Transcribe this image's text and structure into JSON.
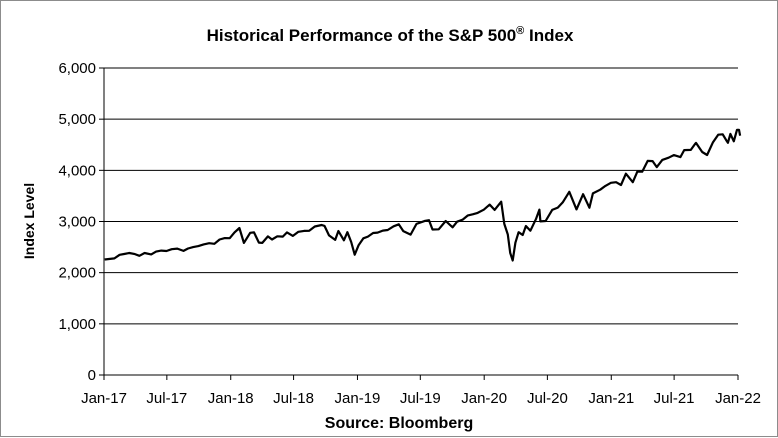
{
  "chart_data": {
    "type": "line",
    "title": "Historical Performance of the S&P 500",
    "title_superscript": "®",
    "title_suffix": " Index",
    "xlabel": "Source: Bloomberg",
    "ylabel": "Index Level",
    "ylim": [
      0,
      6000
    ],
    "yticks": [
      0,
      1000,
      2000,
      3000,
      4000,
      5000,
      6000
    ],
    "ytick_labels": [
      "0",
      "1,000",
      "2,000",
      "3,000",
      "4,000",
      "5,000",
      "6,000"
    ],
    "xlim": [
      "2017-01-01",
      "2022-01-01"
    ],
    "xticks": [
      "2017-01-01",
      "2017-07-01",
      "2018-01-01",
      "2018-07-01",
      "2019-01-01",
      "2019-07-01",
      "2020-01-01",
      "2020-07-01",
      "2021-01-01",
      "2021-07-01",
      "2022-01-01"
    ],
    "xtick_labels": [
      "Jan-17",
      "Jul-17",
      "Jan-18",
      "Jul-18",
      "Jan-19",
      "Jul-19",
      "Jan-20",
      "Jul-20",
      "Jan-21",
      "Jul-21",
      "Jan-22"
    ],
    "grid": true,
    "line_color": "#000000",
    "series": [
      {
        "name": "S&P 500",
        "points": [
          [
            "2017-01-03",
            2258
          ],
          [
            "2017-01-31",
            2279
          ],
          [
            "2017-02-15",
            2349
          ],
          [
            "2017-02-28",
            2364
          ],
          [
            "2017-03-15",
            2385
          ],
          [
            "2017-03-31",
            2363
          ],
          [
            "2017-04-13",
            2329
          ],
          [
            "2017-04-28",
            2384
          ],
          [
            "2017-05-17",
            2357
          ],
          [
            "2017-05-31",
            2412
          ],
          [
            "2017-06-15",
            2432
          ],
          [
            "2017-06-30",
            2423
          ],
          [
            "2017-07-15",
            2459
          ],
          [
            "2017-07-31",
            2470
          ],
          [
            "2017-08-18",
            2425
          ],
          [
            "2017-08-31",
            2472
          ],
          [
            "2017-09-15",
            2500
          ],
          [
            "2017-09-30",
            2519
          ],
          [
            "2017-10-15",
            2553
          ],
          [
            "2017-10-31",
            2575
          ],
          [
            "2017-11-15",
            2565
          ],
          [
            "2017-11-30",
            2648
          ],
          [
            "2017-12-15",
            2675
          ],
          [
            "2017-12-29",
            2674
          ],
          [
            "2018-01-12",
            2786
          ],
          [
            "2018-01-26",
            2873
          ],
          [
            "2018-02-08",
            2581
          ],
          [
            "2018-02-26",
            2780
          ],
          [
            "2018-03-09",
            2786
          ],
          [
            "2018-03-23",
            2588
          ],
          [
            "2018-04-02",
            2582
          ],
          [
            "2018-04-18",
            2708
          ],
          [
            "2018-04-30",
            2648
          ],
          [
            "2018-05-15",
            2711
          ],
          [
            "2018-05-31",
            2705
          ],
          [
            "2018-06-12",
            2787
          ],
          [
            "2018-06-29",
            2718
          ],
          [
            "2018-07-15",
            2798
          ],
          [
            "2018-07-31",
            2816
          ],
          [
            "2018-08-15",
            2819
          ],
          [
            "2018-08-31",
            2902
          ],
          [
            "2018-09-20",
            2931
          ],
          [
            "2018-09-28",
            2914
          ],
          [
            "2018-10-11",
            2728
          ],
          [
            "2018-10-29",
            2641
          ],
          [
            "2018-11-07",
            2814
          ],
          [
            "2018-11-23",
            2633
          ],
          [
            "2018-12-03",
            2790
          ],
          [
            "2018-12-14",
            2600
          ],
          [
            "2018-12-24",
            2351
          ],
          [
            "2019-01-04",
            2532
          ],
          [
            "2019-01-18",
            2671
          ],
          [
            "2019-01-31",
            2704
          ],
          [
            "2019-02-15",
            2776
          ],
          [
            "2019-02-28",
            2784
          ],
          [
            "2019-03-15",
            2822
          ],
          [
            "2019-03-29",
            2834
          ],
          [
            "2019-04-15",
            2907
          ],
          [
            "2019-04-30",
            2946
          ],
          [
            "2019-05-13",
            2812
          ],
          [
            "2019-06-03",
            2744
          ],
          [
            "2019-06-20",
            2954
          ],
          [
            "2019-07-15",
            3014
          ],
          [
            "2019-07-26",
            3026
          ],
          [
            "2019-08-05",
            2844
          ],
          [
            "2019-08-23",
            2847
          ],
          [
            "2019-09-12",
            3010
          ],
          [
            "2019-10-02",
            2887
          ],
          [
            "2019-10-15",
            2996
          ],
          [
            "2019-10-31",
            3038
          ],
          [
            "2019-11-15",
            3120
          ],
          [
            "2019-11-29",
            3141
          ],
          [
            "2019-12-13",
            3169
          ],
          [
            "2019-12-31",
            3231
          ],
          [
            "2020-01-17",
            3330
          ],
          [
            "2020-01-31",
            3226
          ],
          [
            "2020-02-19",
            3386
          ],
          [
            "2020-02-28",
            2954
          ],
          [
            "2020-03-09",
            2746
          ],
          [
            "2020-03-16",
            2386
          ],
          [
            "2020-03-23",
            2237
          ],
          [
            "2020-03-31",
            2585
          ],
          [
            "2020-04-09",
            2790
          ],
          [
            "2020-04-21",
            2737
          ],
          [
            "2020-04-30",
            2912
          ],
          [
            "2020-05-13",
            2820
          ],
          [
            "2020-05-29",
            3044
          ],
          [
            "2020-06-08",
            3232
          ],
          [
            "2020-06-11",
            3002
          ],
          [
            "2020-06-26",
            3009
          ],
          [
            "2020-07-15",
            3227
          ],
          [
            "2020-07-31",
            3271
          ],
          [
            "2020-08-14",
            3373
          ],
          [
            "2020-09-02",
            3580
          ],
          [
            "2020-09-23",
            3237
          ],
          [
            "2020-10-12",
            3534
          ],
          [
            "2020-10-30",
            3270
          ],
          [
            "2020-11-09",
            3550
          ],
          [
            "2020-11-30",
            3622
          ],
          [
            "2020-12-15",
            3695
          ],
          [
            "2020-12-31",
            3756
          ],
          [
            "2021-01-15",
            3768
          ],
          [
            "2021-01-29",
            3714
          ],
          [
            "2021-02-12",
            3934
          ],
          [
            "2021-03-04",
            3768
          ],
          [
            "2021-03-17",
            3974
          ],
          [
            "2021-03-31",
            3973
          ],
          [
            "2021-04-16",
            4185
          ],
          [
            "2021-04-30",
            4181
          ],
          [
            "2021-05-12",
            4063
          ],
          [
            "2021-05-28",
            4204
          ],
          [
            "2021-06-15",
            4246
          ],
          [
            "2021-06-30",
            4298
          ],
          [
            "2021-07-19",
            4258
          ],
          [
            "2021-07-30",
            4395
          ],
          [
            "2021-08-18",
            4400
          ],
          [
            "2021-08-31",
            4523
          ],
          [
            "2021-09-02",
            4537
          ],
          [
            "2021-09-20",
            4358
          ],
          [
            "2021-10-04",
            4300
          ],
          [
            "2021-10-21",
            4549
          ],
          [
            "2021-11-05",
            4697
          ],
          [
            "2021-11-18",
            4704
          ],
          [
            "2021-11-30",
            4567
          ],
          [
            "2021-12-03",
            4538
          ],
          [
            "2021-12-10",
            4712
          ],
          [
            "2021-12-20",
            4568
          ],
          [
            "2021-12-29",
            4793
          ],
          [
            "2022-01-04",
            4793
          ],
          [
            "2022-01-07",
            4677
          ]
        ]
      }
    ]
  }
}
